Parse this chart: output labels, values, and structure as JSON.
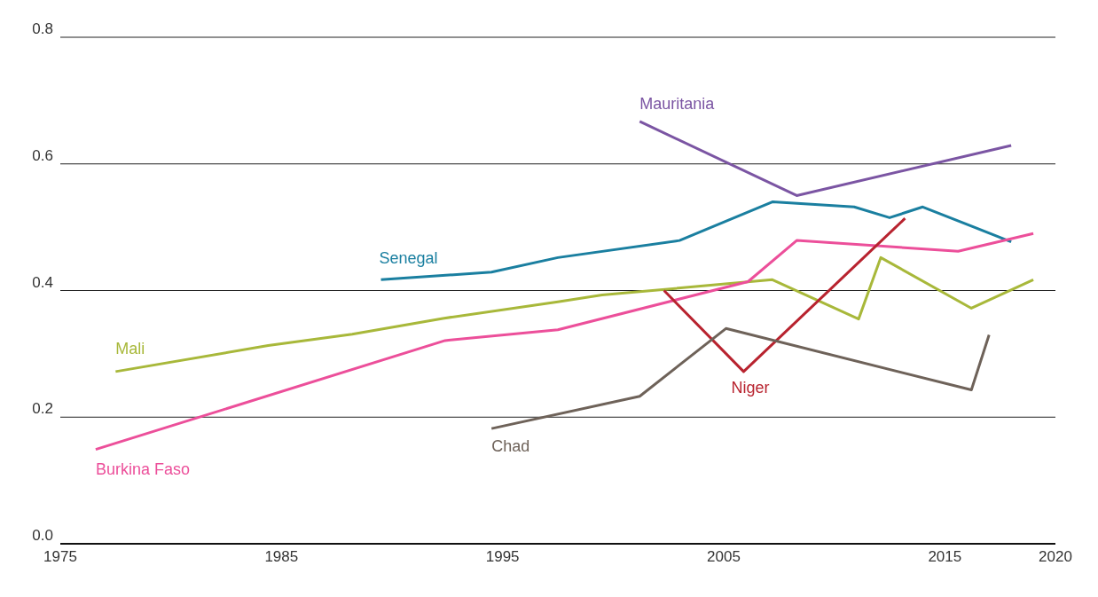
{
  "chart_data": {
    "type": "line",
    "xlim": [
      1975,
      2020
    ],
    "xticks": [
      1975,
      1985,
      1995,
      2005,
      2015,
      2020
    ],
    "ylim": [
      0,
      0.8
    ],
    "yticks": [
      {
        "value": 0,
        "label": "0.0"
      },
      0.2,
      0.4,
      0.6,
      0.8
    ],
    "grid": "y",
    "marker": "none",
    "line_style": "solid",
    "series": [
      {
        "name": "Mauritania",
        "color": "#7b55a3",
        "x": [
          2001.2,
          2008.3,
          2018
        ],
        "values": [
          0.667,
          0.55,
          0.629
        ]
      },
      {
        "name": "Senegal",
        "color": "#1a7fa0",
        "x": [
          1989.5,
          1994.5,
          1997.5,
          2003,
          2007.2,
          2010.9,
          2012.5,
          2014,
          2018
        ],
        "values": [
          0.417,
          0.429,
          0.452,
          0.479,
          0.54,
          0.532,
          0.515,
          0.532,
          0.477
        ]
      },
      {
        "name": "Mali",
        "color": "#a8b83a",
        "x": [
          1977.5,
          1984.4,
          1988.2,
          1992.3,
          1997.5,
          1999.5,
          2007.2,
          2011.1,
          2012.1,
          2016.2,
          2019
        ],
        "values": [
          0.272,
          0.313,
          0.331,
          0.356,
          0.382,
          0.393,
          0.417,
          0.355,
          0.452,
          0.372,
          0.417
        ]
      },
      {
        "name": "Burkina Faso",
        "color": "#ec4f9a",
        "x": [
          1976.6,
          1992.4,
          1997.5,
          2006.1,
          2008.3,
          2015.6,
          2019
        ],
        "values": [
          0.149,
          0.321,
          0.338,
          0.414,
          0.479,
          0.462,
          0.49
        ]
      },
      {
        "name": "Niger",
        "color": "#b8232f",
        "x": [
          2002.3,
          2005.9,
          2013.2
        ],
        "values": [
          0.4,
          0.272,
          0.514
        ]
      },
      {
        "name": "Chad",
        "color": "#6e6259",
        "x": [
          1994.5,
          2001.2,
          2005.1,
          2016.2,
          2017
        ],
        "values": [
          0.182,
          0.233,
          0.34,
          0.243,
          0.33
        ]
      }
    ]
  }
}
